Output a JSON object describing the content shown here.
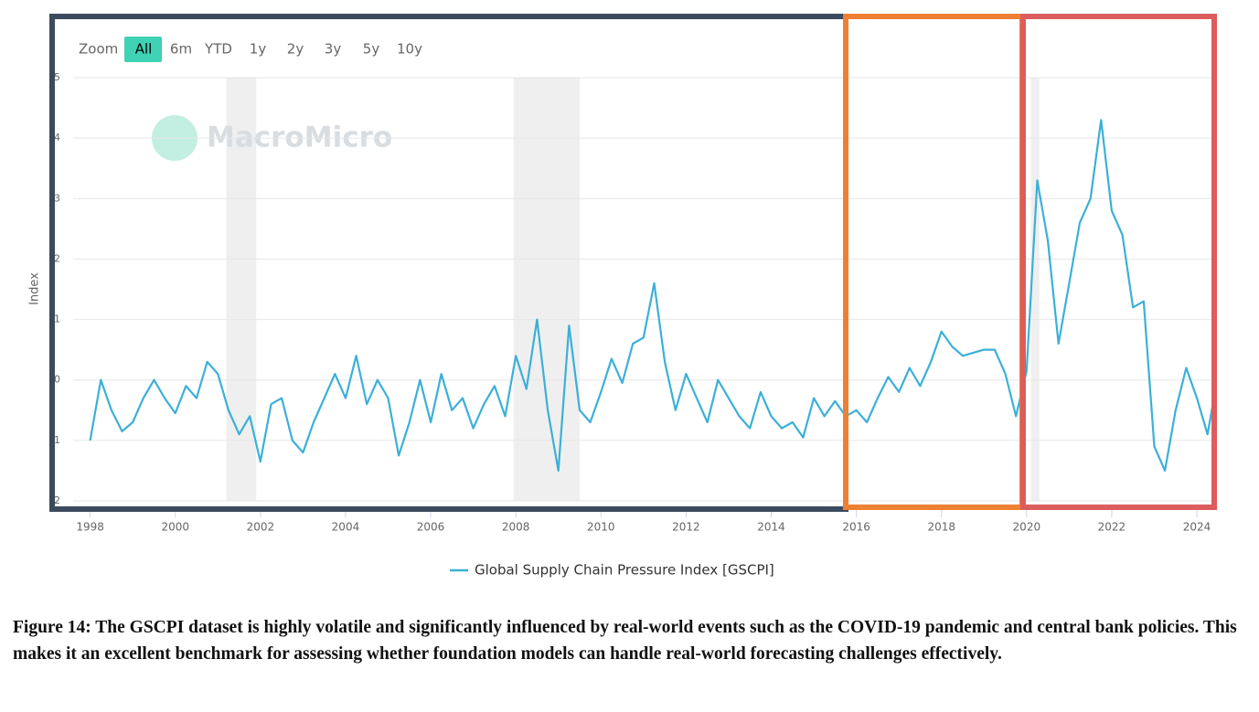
{
  "chart_data": {
    "type": "line",
    "ylabel": "Index",
    "legend": "Global Supply Chain Pressure Index [GSCPI]",
    "color": "#3bb0d8",
    "watermark": "MacroMicro",
    "x": [
      1998,
      1998.25,
      1998.5,
      1998.75,
      1999,
      1999.25,
      1999.5,
      1999.75,
      2000,
      2000.25,
      2000.5,
      2000.75,
      2001,
      2001.25,
      2001.5,
      2001.75,
      2002,
      2002.25,
      2002.5,
      2002.75,
      2003,
      2003.25,
      2003.5,
      2003.75,
      2004,
      2004.25,
      2004.5,
      2004.75,
      2005,
      2005.25,
      2005.5,
      2005.75,
      2006,
      2006.25,
      2006.5,
      2006.75,
      2007,
      2007.25,
      2007.5,
      2007.75,
      2008,
      2008.25,
      2008.5,
      2008.75,
      2009,
      2009.25,
      2009.5,
      2009.75,
      2010,
      2010.25,
      2010.5,
      2010.75,
      2011,
      2011.25,
      2011.5,
      2011.75,
      2012,
      2012.25,
      2012.5,
      2012.75,
      2013,
      2013.25,
      2013.5,
      2013.75,
      2014,
      2014.25,
      2014.5,
      2014.75,
      2015,
      2015.25,
      2015.5,
      2015.75,
      2016,
      2016.25,
      2016.5,
      2016.75,
      2017,
      2017.25,
      2017.5,
      2017.75,
      2018,
      2018.25,
      2018.5,
      2018.75,
      2019,
      2019.25,
      2019.5,
      2019.75,
      2020,
      2020.25,
      2020.5,
      2020.75,
      2021,
      2021.25,
      2021.5,
      2021.75,
      2022,
      2022.25,
      2022.5,
      2022.75,
      2023,
      2023.25,
      2023.5,
      2023.75,
      2024,
      2024.25,
      2024.4
    ],
    "values": [
      -1.0,
      0.0,
      -0.5,
      -0.85,
      -0.7,
      -0.3,
      0.0,
      -0.3,
      -0.55,
      -0.1,
      -0.3,
      0.3,
      0.1,
      -0.5,
      -0.9,
      -0.6,
      -1.35,
      -0.4,
      -0.3,
      -1.0,
      -1.2,
      -0.7,
      -0.3,
      0.1,
      -0.3,
      0.4,
      -0.4,
      0.0,
      -0.3,
      -1.25,
      -0.7,
      0.0,
      -0.7,
      0.1,
      -0.5,
      -0.3,
      -0.8,
      -0.4,
      -0.1,
      -0.6,
      0.4,
      -0.15,
      1.0,
      -0.5,
      -1.5,
      0.9,
      -0.5,
      -0.7,
      -0.2,
      0.35,
      -0.05,
      0.6,
      0.7,
      1.6,
      0.3,
      -0.5,
      0.1,
      -0.3,
      -0.7,
      0.0,
      -0.3,
      -0.6,
      -0.8,
      -0.2,
      -0.6,
      -0.8,
      -0.7,
      -0.95,
      -0.3,
      -0.6,
      -0.35,
      -0.6,
      -0.5,
      -0.7,
      -0.3,
      0.05,
      -0.2,
      0.2,
      -0.1,
      0.3,
      0.8,
      0.55,
      0.4,
      0.45,
      0.5,
      0.5,
      0.1,
      -0.6,
      0.15,
      3.3,
      2.3,
      0.6,
      1.6,
      2.6,
      3.0,
      4.3,
      2.8,
      2.4,
      1.2,
      1.3,
      -1.1,
      -1.5,
      -0.5,
      0.2,
      -0.3,
      -0.9,
      -0.3
    ],
    "recessions": [
      [
        2001.2,
        2001.9
      ],
      [
        2007.95,
        2009.5
      ],
      [
        2020.1,
        2020.3
      ]
    ],
    "xlim": [
      1997.6,
      2024.45
    ],
    "xticks": [
      1998,
      2000,
      2002,
      2004,
      2006,
      2008,
      2010,
      2012,
      2014,
      2016,
      2018,
      2020,
      2022,
      2024
    ],
    "ylim": [
      -2,
      5
    ],
    "yticks": [
      -2,
      -1,
      0,
      1,
      2,
      3,
      4,
      5
    ],
    "grid": true
  },
  "zoom": {
    "label": "Zoom",
    "buttons": [
      "All",
      "6m",
      "YTD",
      "1y",
      "2y",
      "3y",
      "5y",
      "10y"
    ]
  },
  "caption": "Figure 14: The GSCPI dataset is highly volatile and significantly influenced by real-world events such as the COVID-19 pandemic and central bank policies. This makes it an excellent benchmark for assessing whether foundation models can handle real-world forecasting challenges effectively."
}
